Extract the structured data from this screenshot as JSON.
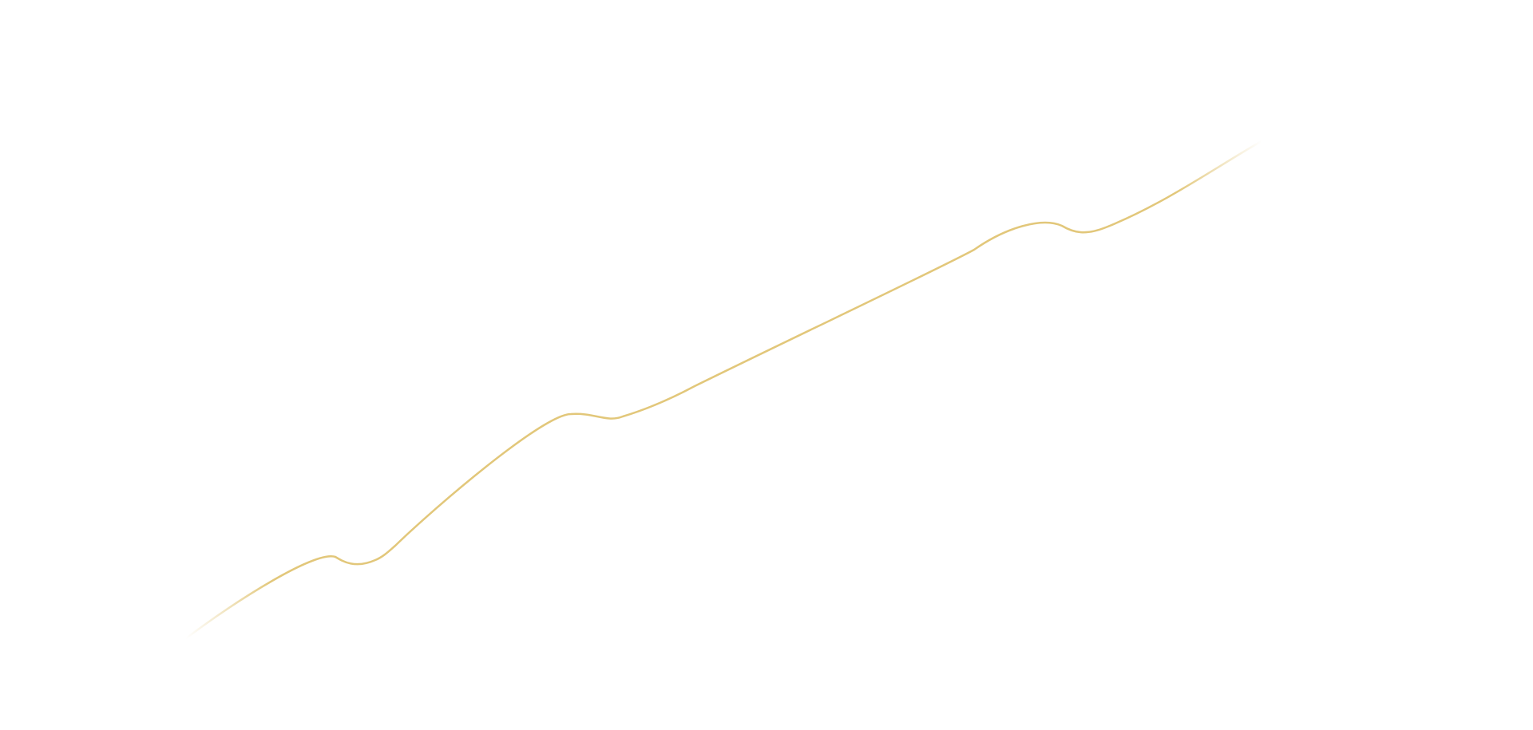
{
  "background_color": "#ffffff",
  "line_color": "#e2c77a"
}
